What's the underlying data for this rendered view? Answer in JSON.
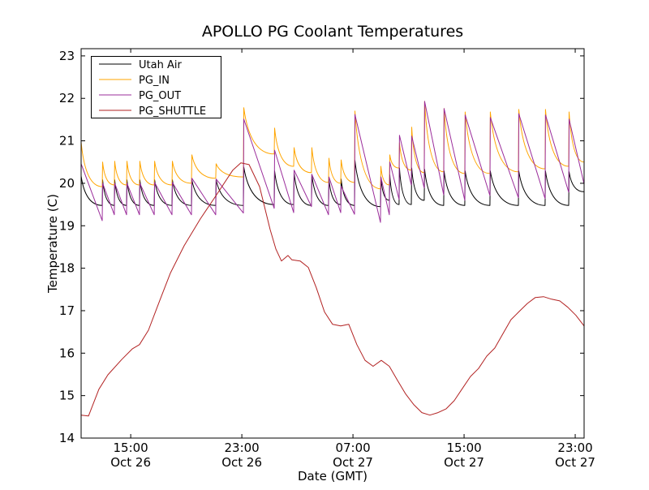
{
  "chart_data": {
    "type": "line",
    "title": "APOLLO PG Coolant Temperatures",
    "xlabel": "Date (GMT)",
    "ylabel": "Temperature (C)",
    "x_units": "hours since Oct 26 00:00 GMT",
    "xlim": [
      11.43,
      47.64
    ],
    "ylim": [
      14,
      23.17
    ],
    "yticks": [
      14,
      15,
      16,
      17,
      18,
      19,
      20,
      21,
      22,
      23
    ],
    "xticks": [
      {
        "value": 15,
        "time": "15:00",
        "date": "Oct 26"
      },
      {
        "value": 23,
        "time": "23:00",
        "date": "Oct 26"
      },
      {
        "value": 31,
        "time": "07:00",
        "date": "Oct 27"
      },
      {
        "value": 39,
        "time": "15:00",
        "date": "Oct 27"
      },
      {
        "value": 47,
        "time": "23:00",
        "date": "Oct 27"
      }
    ],
    "grid": false,
    "legend_position": "top-left",
    "spike_times": [
      12.95,
      13.82,
      14.7,
      15.63,
      16.69,
      17.97,
      19.37,
      21.12,
      23.11,
      25.33,
      26.73,
      28.01,
      29.24,
      30.12,
      31.11,
      32.98,
      33.62,
      34.32,
      35.2,
      36.13,
      37.53,
      39.05,
      40.86,
      42.91,
      44.83,
      46.53
    ],
    "series": [
      {
        "name": "Utah Air",
        "color": "#000000",
        "kind": "sawtooth",
        "start": [
          11.43,
          20.17
        ],
        "end": [
          47.64,
          19.8
        ],
        "troughs": [
          19.48,
          19.48,
          19.48,
          19.48,
          19.48,
          19.48,
          19.48,
          19.48,
          19.48,
          19.5,
          19.5,
          19.48,
          19.48,
          19.5,
          19.48,
          19.45,
          19.6,
          19.5,
          19.5,
          19.6,
          19.48,
          19.48,
          19.48,
          19.48,
          19.48,
          19.48
        ],
        "peaks": [
          20.08,
          20.08,
          20.08,
          20.08,
          20.08,
          20.08,
          20.08,
          20.08,
          20.38,
          20.29,
          20.25,
          20.21,
          20.1,
          20.1,
          20.54,
          20.15,
          20.2,
          20.36,
          20.36,
          20.33,
          20.29,
          20.29,
          20.29,
          20.29,
          20.29,
          20.27
        ]
      },
      {
        "name": "PG_IN",
        "color": "#FFA500",
        "kind": "sawtooth",
        "start": [
          11.43,
          20.97
        ],
        "end": [
          47.64,
          20.5
        ],
        "troughs": [
          19.92,
          19.96,
          19.96,
          19.96,
          19.96,
          19.96,
          20.0,
          20.12,
          20.15,
          20.69,
          20.4,
          20.25,
          20.02,
          20.0,
          20.02,
          19.87,
          19.96,
          20.36,
          20.31,
          20.25,
          20.27,
          20.23,
          20.23,
          20.27,
          20.34,
          20.4
        ],
        "peaks": [
          20.5,
          20.52,
          20.52,
          20.52,
          20.52,
          20.52,
          20.67,
          20.46,
          21.78,
          21.3,
          20.84,
          20.84,
          20.59,
          20.55,
          21.7,
          20.4,
          20.67,
          20.96,
          21.32,
          21.93,
          21.76,
          21.68,
          21.68,
          21.74,
          21.74,
          21.68
        ]
      },
      {
        "name": "PG_OUT",
        "color": "#9B2D9B",
        "kind": "sawtooth",
        "start": [
          11.43,
          20.46
        ],
        "end": [
          47.64,
          19.98
        ],
        "troughs": [
          19.12,
          19.26,
          19.26,
          19.26,
          19.26,
          19.26,
          19.26,
          19.26,
          19.3,
          19.41,
          19.31,
          19.45,
          19.26,
          19.31,
          19.27,
          19.08,
          19.26,
          19.62,
          19.96,
          19.89,
          19.73,
          19.6,
          19.71,
          19.66,
          19.64,
          19.79
        ],
        "peaks": [
          20.0,
          20.0,
          20.0,
          20.0,
          20.02,
          20.02,
          20.12,
          20.1,
          21.51,
          20.78,
          20.31,
          20.21,
          20.15,
          19.93,
          21.62,
          20.15,
          20.5,
          21.13,
          21.11,
          21.93,
          21.76,
          21.61,
          21.55,
          21.64,
          21.61,
          21.51
        ]
      },
      {
        "name": "PG_SHUTTLE",
        "color": "#B22222",
        "kind": "line",
        "points": [
          [
            11.43,
            14.54
          ],
          [
            11.96,
            14.52
          ],
          [
            12.71,
            15.15
          ],
          [
            13.36,
            15.49
          ],
          [
            14.35,
            15.85
          ],
          [
            15.11,
            16.1
          ],
          [
            15.63,
            16.2
          ],
          [
            16.28,
            16.54
          ],
          [
            17.1,
            17.25
          ],
          [
            17.85,
            17.88
          ],
          [
            18.85,
            18.53
          ],
          [
            20.01,
            19.16
          ],
          [
            21.18,
            19.73
          ],
          [
            22.35,
            20.31
          ],
          [
            22.93,
            20.48
          ],
          [
            23.52,
            20.44
          ],
          [
            24.28,
            19.92
          ],
          [
            25.04,
            18.91
          ],
          [
            25.45,
            18.45
          ],
          [
            25.85,
            18.17
          ],
          [
            26.32,
            18.3
          ],
          [
            26.6,
            18.2
          ],
          [
            27.2,
            18.17
          ],
          [
            27.78,
            18.02
          ],
          [
            28.36,
            17.54
          ],
          [
            28.95,
            16.97
          ],
          [
            29.53,
            16.68
          ],
          [
            30.12,
            16.64
          ],
          [
            30.7,
            16.68
          ],
          [
            31.28,
            16.2
          ],
          [
            31.87,
            15.83
          ],
          [
            32.45,
            15.69
          ],
          [
            33.04,
            15.83
          ],
          [
            33.62,
            15.69
          ],
          [
            34.2,
            15.36
          ],
          [
            34.79,
            15.04
          ],
          [
            35.37,
            14.79
          ],
          [
            35.96,
            14.6
          ],
          [
            36.54,
            14.54
          ],
          [
            37.12,
            14.6
          ],
          [
            37.71,
            14.69
          ],
          [
            38.29,
            14.88
          ],
          [
            38.88,
            15.17
          ],
          [
            39.46,
            15.45
          ],
          [
            40.04,
            15.64
          ],
          [
            40.63,
            15.93
          ],
          [
            41.21,
            16.12
          ],
          [
            41.8,
            16.46
          ],
          [
            42.38,
            16.79
          ],
          [
            42.96,
            16.98
          ],
          [
            43.55,
            17.17
          ],
          [
            44.13,
            17.31
          ],
          [
            44.72,
            17.33
          ],
          [
            45.3,
            17.27
          ],
          [
            45.89,
            17.23
          ],
          [
            46.47,
            17.08
          ],
          [
            47.05,
            16.89
          ],
          [
            47.64,
            16.64
          ]
        ]
      }
    ]
  }
}
